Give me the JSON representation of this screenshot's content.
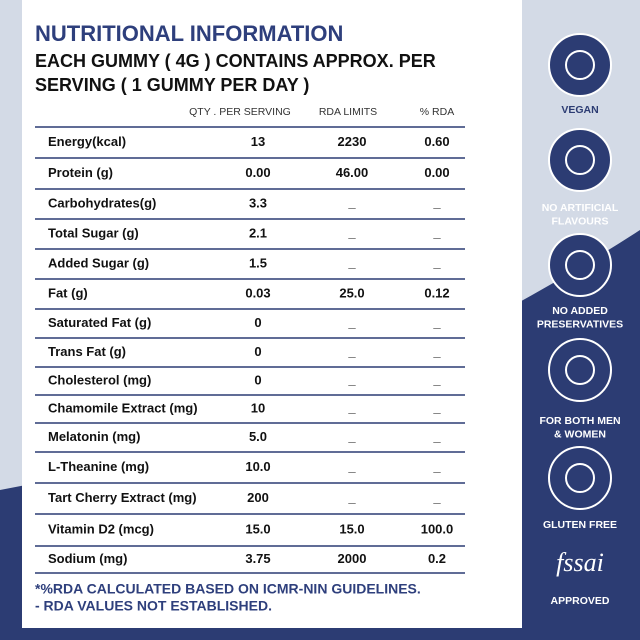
{
  "header": {
    "title": "NUTRITIONAL INFORMATION",
    "subtitle": [
      "EACH GUMMY ( 4G ) CONTAINS APPROX. PER",
      "SERVING ( 1 GUMMY PER DAY )"
    ]
  },
  "table": {
    "columns": [
      "QTY . PER SERVING",
      "RDA LIMITS",
      "% RDA"
    ],
    "rows": [
      [
        "Energy(kcal)",
        "13",
        "2230",
        "0.60"
      ],
      [
        "Protein (g)",
        "0.00",
        "46.00",
        "0.00"
      ],
      [
        "Carbohydrates(g)",
        "3.3",
        "_",
        "_"
      ],
      [
        "Total Sugar (g)",
        "2.1",
        "_",
        "_"
      ],
      [
        "Added Sugar (g)",
        "1.5",
        "_",
        "_"
      ],
      [
        "Fat (g)",
        "0.03",
        "25.0",
        "0.12"
      ],
      [
        "Saturated Fat (g)",
        "0",
        "_",
        "_"
      ],
      [
        "Trans Fat (g)",
        "0",
        "_",
        "_"
      ],
      [
        "Cholesterol (mg)",
        "0",
        "_",
        "_"
      ],
      [
        "Chamomile Extract (mg)",
        "10",
        "_",
        "_"
      ],
      [
        "Melatonin (mg)",
        "5.0",
        "_",
        "_"
      ],
      [
        "L-Theanine (mg)",
        "10.0",
        "_",
        "_"
      ],
      [
        "Tart Cherry Extract (mg)",
        "200",
        "_",
        "_"
      ],
      [
        "Vitamin D2 (mcg)",
        "15.0",
        "15.0",
        "100.0"
      ],
      [
        "Sodium (mg)",
        "3.75",
        "2000",
        "0.2"
      ]
    ]
  },
  "footer": [
    "*%RDA CALCULATED BASED ON ICMR-NIN GUIDELINES.",
    "- RDA VALUES NOT ESTABLISHED."
  ],
  "badges": [
    {
      "label": [
        "VEGAN"
      ]
    },
    {
      "label": [
        "NO ARTIFICIAL",
        "FLAVOURS"
      ]
    },
    {
      "label": [
        "NO ADDED",
        "PRESERVATIVES"
      ]
    },
    {
      "label": [
        "FOR BOTH MEN",
        "& WOMEN"
      ]
    },
    {
      "label": [
        "GLUTEN FREE"
      ]
    },
    {
      "logo": "fssai",
      "label": [
        "APPROVED"
      ]
    }
  ]
}
